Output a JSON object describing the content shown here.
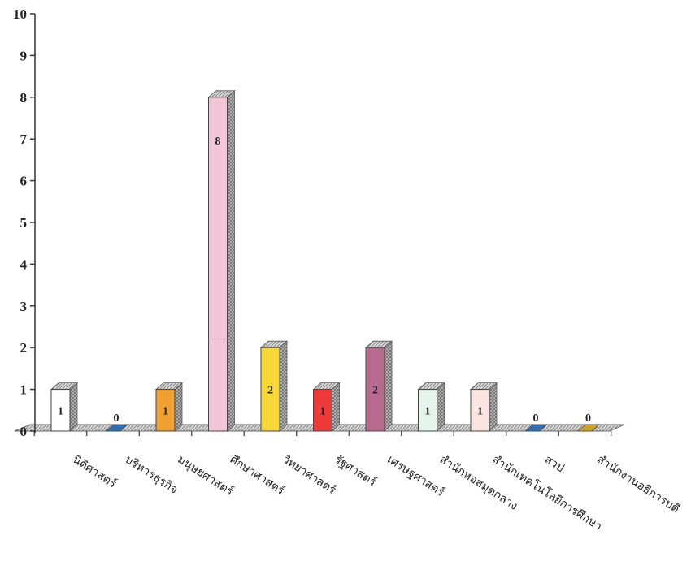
{
  "chart_data": {
    "type": "bar",
    "title": "",
    "xlabel": "",
    "ylabel": "",
    "ylim": [
      0,
      10
    ],
    "yticks": [
      0,
      1,
      2,
      3,
      4,
      5,
      6,
      7,
      8,
      9,
      10
    ],
    "style": "3d",
    "grid": false,
    "categories": [
      "นิติศาสตร์",
      "บริหารธุรกิจ",
      "มนุษยศาสตร์",
      "ศึกษาศาสตร์",
      "วิทยาศาสตร์",
      "รัฐศาสตร์",
      "เศรษฐศาสตร์",
      "สำนักหอสมุดกลาง",
      "สำนักเทคโนโลยีการศึกษา",
      "สวป.",
      "สำนักงานอธิการบดี"
    ],
    "values": [
      1,
      0,
      1,
      8,
      2,
      1,
      2,
      1,
      1,
      0,
      0
    ],
    "colors": [
      "#ffffff",
      "#2f6fb0",
      "#f0a030",
      "#f2c6d6",
      "#f7d838",
      "#ee3a3a",
      "#b86a8c",
      "#e6f4ee",
      "#f8e4e0",
      "#2f6fb0",
      "#c9a530"
    ]
  }
}
